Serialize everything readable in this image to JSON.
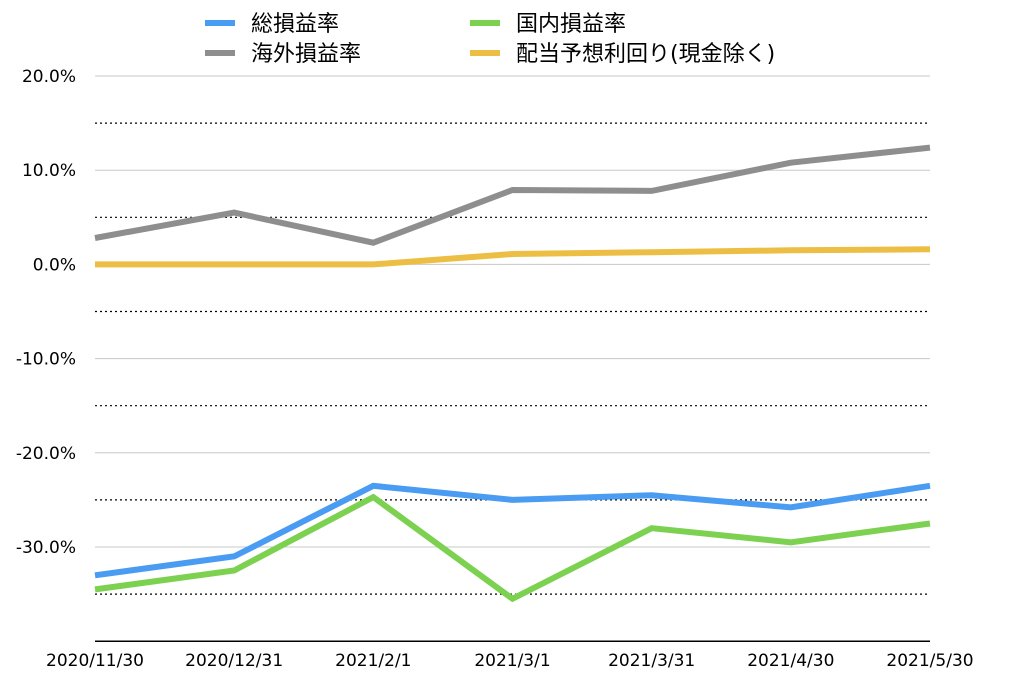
{
  "chart_data": {
    "type": "line",
    "categories": [
      "2020/11/30",
      "2020/12/31",
      "2021/2/1",
      "2021/3/1",
      "2021/3/31",
      "2021/4/30",
      "2021/5/30"
    ],
    "y_tick_labels": [
      "20.0%",
      "10.0%",
      "0.0%",
      "-10.0%",
      "-20.0%",
      "-30.0%"
    ],
    "y_ticks": [
      20,
      10,
      0,
      -10,
      -20,
      -30
    ],
    "ylim": [
      -40,
      20
    ],
    "y_unit": "%",
    "grid": "solid at major ticks, dotted at half ticks",
    "legend_position": "top",
    "series": [
      {
        "name": "総損益率",
        "color": "#4a9cf2",
        "values": [
          -33.0,
          -31.0,
          -23.5,
          -25.0,
          -24.5,
          -25.8,
          -23.5
        ]
      },
      {
        "name": "国内損益率",
        "color": "#7dd150",
        "values": [
          -34.5,
          -32.5,
          -24.7,
          -35.5,
          -28.0,
          -29.5,
          -27.5
        ]
      },
      {
        "name": "海外損益率",
        "color": "#8e8e8e",
        "values": [
          2.8,
          5.5,
          2.3,
          7.9,
          7.8,
          10.8,
          12.4
        ]
      },
      {
        "name": "配当予想利回り(現金除く)",
        "color": "#ecbf44",
        "values": [
          0.0,
          0.0,
          0.0,
          1.1,
          1.3,
          1.5,
          1.6
        ]
      }
    ]
  }
}
